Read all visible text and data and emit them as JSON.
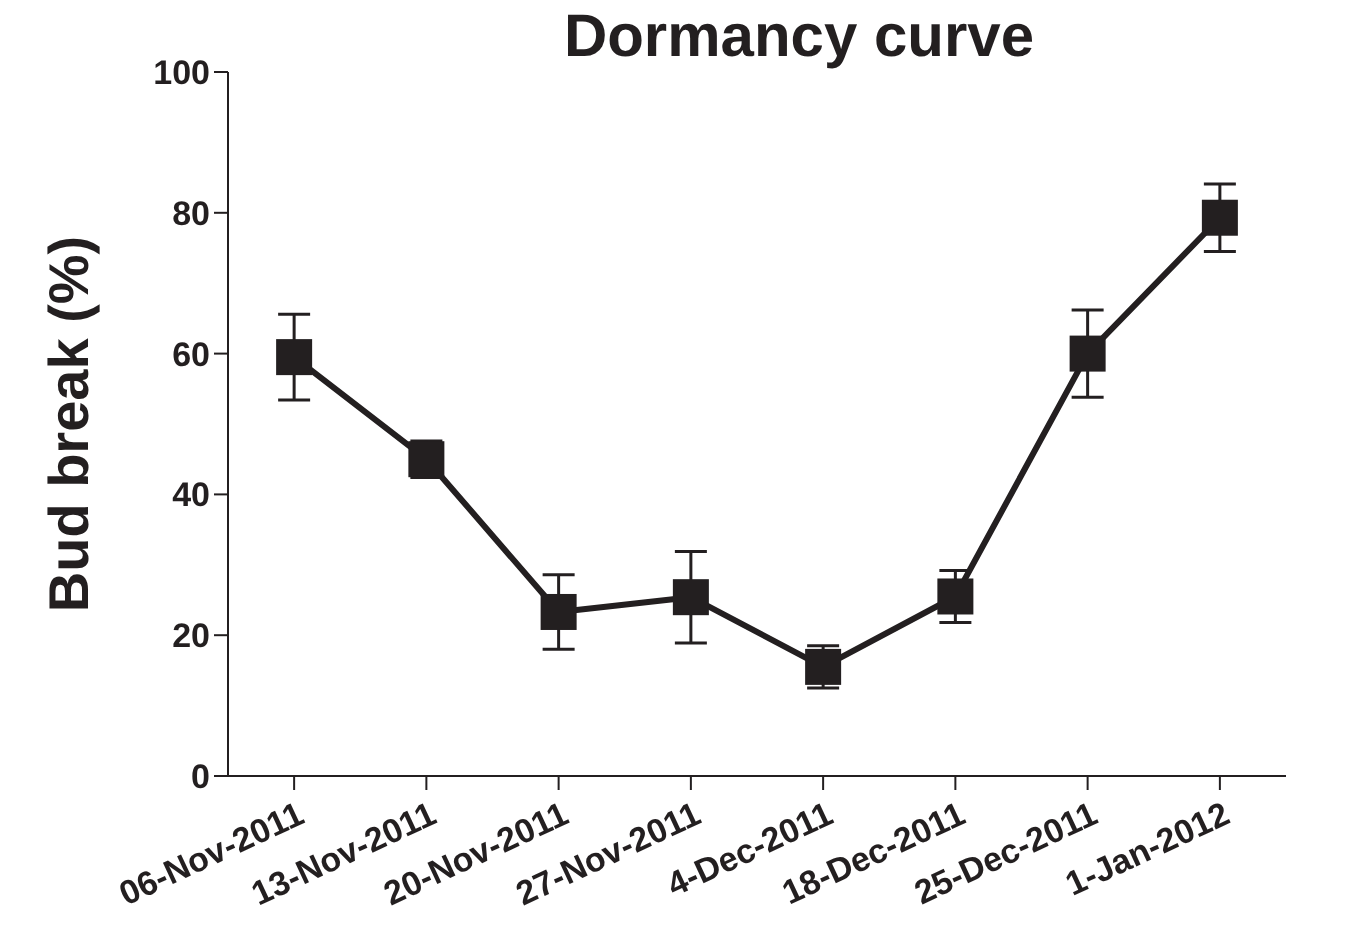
{
  "chart_data": {
    "type": "line",
    "title": "Dormancy curve",
    "ylabel": "Bud break (%)",
    "categories": [
      "06-Nov-2011",
      "13-Nov-2011",
      "20-Nov-2011",
      "27-Nov-2011",
      "4-Dec-2011",
      "18-Dec-2011",
      "25-Dec-2011",
      "1-Jan-2012"
    ],
    "series": [
      {
        "color": "#231f20",
        "values": [
          59.5,
          45,
          23.3,
          25.4,
          15.5,
          25.5,
          60,
          79.3
        ],
        "errors": [
          6.1,
          2.6,
          5.3,
          6.5,
          3,
          3.7,
          6.2,
          4.8
        ]
      }
    ],
    "ylim": [
      0,
      100
    ],
    "yticks": [
      0,
      20,
      40,
      60,
      80,
      100
    ],
    "grid": false,
    "legend": false,
    "marker": "square",
    "line_style": "solid"
  }
}
